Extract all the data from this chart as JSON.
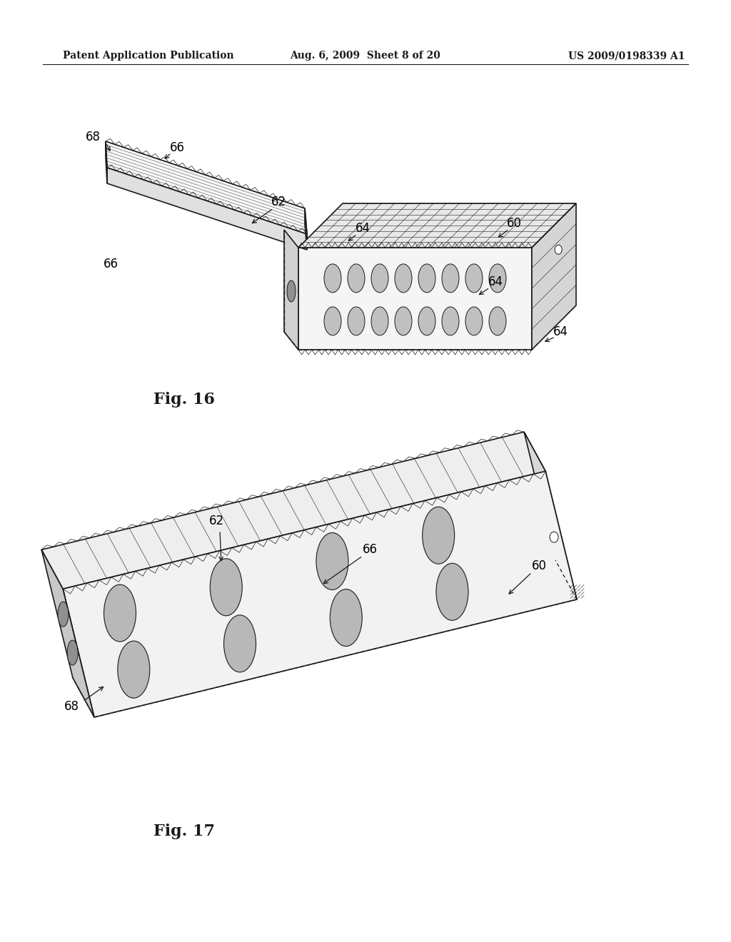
{
  "background_color": "#ffffff",
  "header_left": "Patent Application Publication",
  "header_center": "Aug. 6, 2009  Sheet 8 of 20",
  "header_right": "US 2009/0198339 A1",
  "fig16_label": "Fig. 16",
  "fig17_label": "Fig. 17",
  "header_fontsize": 10,
  "fig_label_fontsize": 16,
  "annotation_fontsize": 12,
  "line_color": "#1a1a1a",
  "lw_main": 1.2,
  "lw_thin": 0.6,
  "lw_dashed": 0.8
}
